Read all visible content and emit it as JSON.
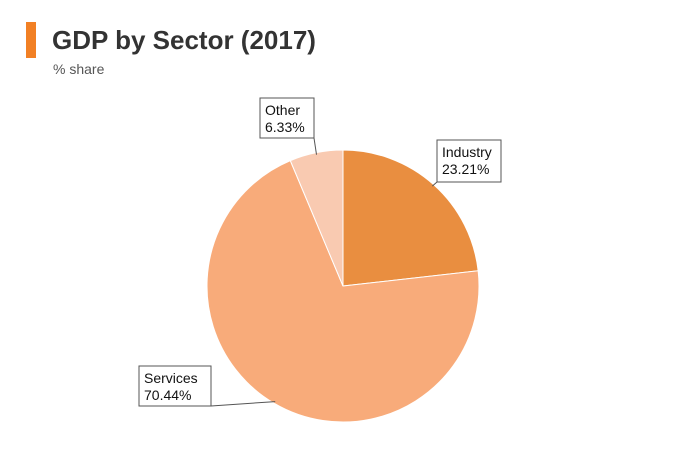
{
  "accent_color": "#f28024",
  "chart_data": {
    "type": "pie",
    "title": "GDP by Sector (2017)",
    "subtitle": "% share",
    "slices": [
      {
        "label": "Industry",
        "value": 23.21,
        "value_label": "23.21%",
        "color": "#e98e40"
      },
      {
        "label": "Services",
        "value": 70.44,
        "value_label": "70.44%",
        "color": "#f8ab7a"
      },
      {
        "label": "Other",
        "value": 6.33,
        "value_label": "6.33%",
        "color": "#f9cab1"
      }
    ]
  }
}
